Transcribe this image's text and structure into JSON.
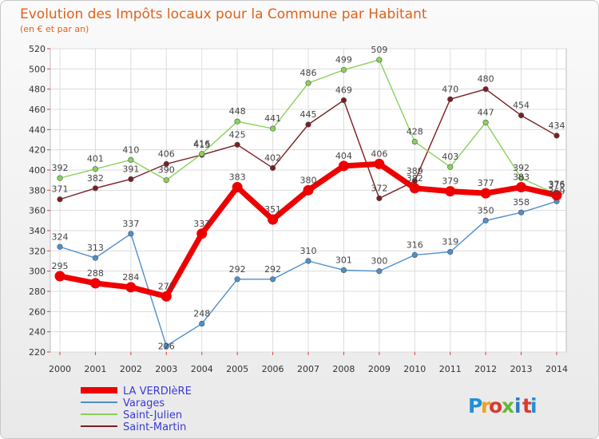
{
  "chart_data": {
    "type": "line",
    "title": "Evolution des Impôts locaux pour la Commune par Habitant",
    "subtitle": "(en € et par an)",
    "x": [
      "2000",
      "2001",
      "2002",
      "2003",
      "2004",
      "2005",
      "2006",
      "2007",
      "2008",
      "2009",
      "2010",
      "2011",
      "2012",
      "2013",
      "2014"
    ],
    "ylim": [
      220,
      520
    ],
    "yticks": [
      "220",
      "240",
      "260",
      "280",
      "300",
      "320",
      "340",
      "360",
      "380",
      "400",
      "420",
      "440",
      "460",
      "480",
      "500",
      "520"
    ],
    "grid": true,
    "legend_position": "bottom-left",
    "series": [
      {
        "name": "LA VERDIèRE",
        "color": "#ee0000",
        "values": [
          295,
          288,
          284,
          275,
          337,
          383,
          351,
          380,
          404,
          406,
          382,
          379,
          377,
          383,
          375
        ]
      },
      {
        "name": "Varages",
        "color": "#4d8fcc",
        "values": [
          324,
          313,
          337,
          226,
          248,
          292,
          292,
          310,
          301,
          300,
          316,
          319,
          350,
          358,
          369
        ]
      },
      {
        "name": "Saint-Julien",
        "color": "#88d25a",
        "values": [
          392,
          401,
          410,
          390,
          416,
          448,
          441,
          486,
          499,
          509,
          428,
          403,
          447,
          392,
          376
        ]
      },
      {
        "name": "Saint-Martin",
        "color": "#7a1e22",
        "values": [
          371,
          382,
          391,
          406,
          415,
          425,
          402,
          445,
          469,
          372,
          389,
          470,
          480,
          454,
          434
        ]
      }
    ]
  },
  "logo": {
    "letters": [
      "P",
      "r",
      "o",
      "x",
      "i",
      "t",
      "i"
    ],
    "colors": [
      "#1e90d8",
      "#f0a020",
      "#d83a2e",
      "#66b832",
      "#2a78c8",
      "#d83a2e",
      "#1e90d8"
    ]
  }
}
